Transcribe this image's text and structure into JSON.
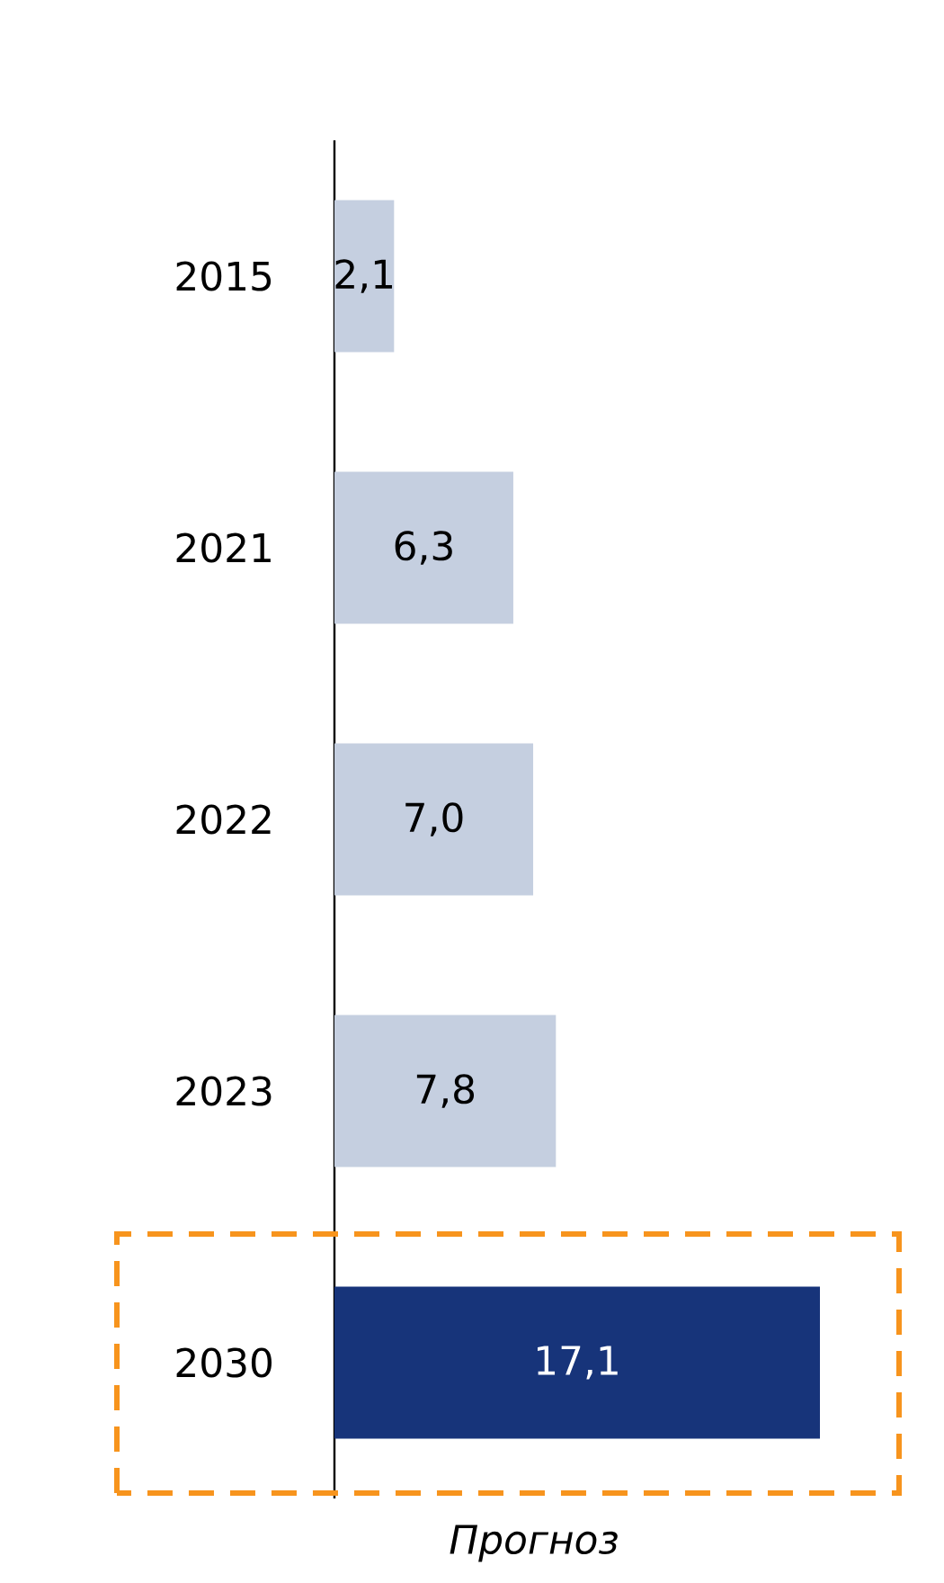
{
  "chart_data": {
    "type": "bar",
    "orientation": "horizontal",
    "categories": [
      "2015",
      "2021",
      "2022",
      "2023",
      "2030"
    ],
    "values": [
      2.1,
      6.3,
      7.0,
      7.8,
      17.1
    ],
    "colors": [
      "#c5cfe0",
      "#c5cfe0",
      "#c5cfe0",
      "#c5cfe0",
      "#17347a"
    ],
    "value_labels": [
      "2,1",
      "6,3",
      "7,0",
      "7,8",
      "17,1"
    ],
    "annotations": [
      "Прогноз"
    ]
  }
}
